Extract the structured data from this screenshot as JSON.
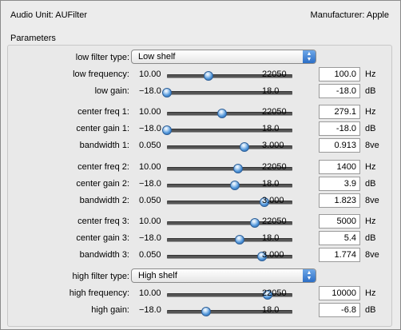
{
  "header": {
    "title": "Audio Unit: AUFilter",
    "manufacturer": "Manufacturer: Apple"
  },
  "group": {
    "label": "Parameters"
  },
  "arrow_icons": {
    "up": "▲",
    "down": "▼"
  },
  "rows": [
    {
      "kind": "select",
      "label": "low filter type:",
      "value": "Low shelf"
    },
    {
      "kind": "slider",
      "label": "low frequency:",
      "min": "10.00",
      "max": "22050",
      "value": "100.0",
      "unit": "Hz",
      "pos": 0.33
    },
    {
      "kind": "slider",
      "label": "low gain:",
      "min": "−18.0",
      "max": "18.0",
      "value": "-18.0",
      "unit": "dB",
      "pos": 0.0
    },
    {
      "kind": "slider",
      "label": "center freq 1:",
      "min": "10.00",
      "max": "22050",
      "value": "279.1",
      "unit": "Hz",
      "pos": 0.44
    },
    {
      "kind": "slider",
      "label": "center gain 1:",
      "min": "−18.0",
      "max": "18.0",
      "value": "-18.0",
      "unit": "dB",
      "pos": 0.0
    },
    {
      "kind": "slider",
      "label": "bandwidth 1:",
      "min": "0.050",
      "max": "3.000",
      "value": "0.913",
      "unit": "8ve",
      "pos": 0.62
    },
    {
      "kind": "slider",
      "label": "center freq 2:",
      "min": "10.00",
      "max": "22050",
      "value": "1400",
      "unit": "Hz",
      "pos": 0.57
    },
    {
      "kind": "slider",
      "label": "center gain 2:",
      "min": "−18.0",
      "max": "18.0",
      "value": "3.9",
      "unit": "dB",
      "pos": 0.54
    },
    {
      "kind": "slider",
      "label": "bandwidth 2:",
      "min": "0.050",
      "max": "3.000",
      "value": "1.823",
      "unit": "8ve",
      "pos": 0.78
    },
    {
      "kind": "slider",
      "label": "center freq 3:",
      "min": "10.00",
      "max": "22050",
      "value": "5000",
      "unit": "Hz",
      "pos": 0.7
    },
    {
      "kind": "slider",
      "label": "center gain 3:",
      "min": "−18.0",
      "max": "18.0",
      "value": "5.4",
      "unit": "dB",
      "pos": 0.58
    },
    {
      "kind": "slider",
      "label": "bandwidth 3:",
      "min": "0.050",
      "max": "3.000",
      "value": "1.774",
      "unit": "8ve",
      "pos": 0.76
    },
    {
      "kind": "select",
      "label": "high filter type:",
      "value": "High shelf"
    },
    {
      "kind": "slider",
      "label": "high frequency:",
      "min": "10.00",
      "max": "22050",
      "value": "10000",
      "unit": "Hz",
      "pos": 0.8
    },
    {
      "kind": "slider",
      "label": "high gain:",
      "min": "−18.0",
      "max": "18.0",
      "value": "-6.8",
      "unit": "dB",
      "pos": 0.31
    }
  ]
}
